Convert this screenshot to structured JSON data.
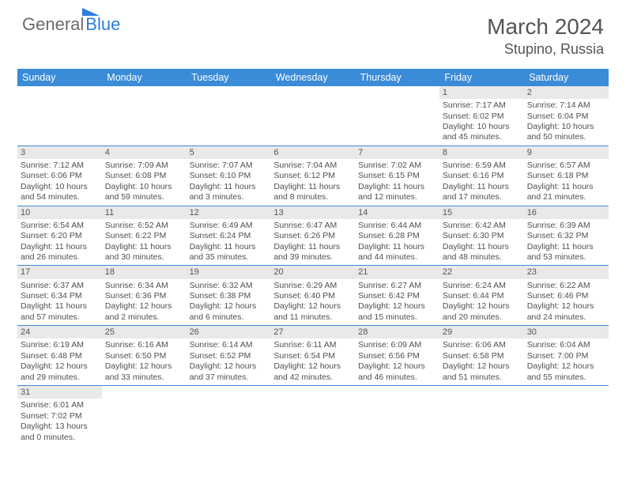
{
  "logo": {
    "text1": "General",
    "text2": "Blue"
  },
  "title": {
    "month": "March 2024",
    "location": "Stupino, Russia"
  },
  "headers": [
    "Sunday",
    "Monday",
    "Tuesday",
    "Wednesday",
    "Thursday",
    "Friday",
    "Saturday"
  ],
  "colors": {
    "header_bg": "#3a8bd8",
    "header_fg": "#ffffff",
    "daynum_bg": "#e9e9e9",
    "border": "#3a8bd8",
    "text": "#505050",
    "logo_gray": "#6b6b6b",
    "logo_blue": "#2a7de1"
  },
  "grid": [
    [
      null,
      null,
      null,
      null,
      null,
      {
        "n": "1",
        "sr": "7:17 AM",
        "ss": "6:02 PM",
        "dl": "10 hours and 45 minutes."
      },
      {
        "n": "2",
        "sr": "7:14 AM",
        "ss": "6:04 PM",
        "dl": "10 hours and 50 minutes."
      }
    ],
    [
      {
        "n": "3",
        "sr": "7:12 AM",
        "ss": "6:06 PM",
        "dl": "10 hours and 54 minutes."
      },
      {
        "n": "4",
        "sr": "7:09 AM",
        "ss": "6:08 PM",
        "dl": "10 hours and 59 minutes."
      },
      {
        "n": "5",
        "sr": "7:07 AM",
        "ss": "6:10 PM",
        "dl": "11 hours and 3 minutes."
      },
      {
        "n": "6",
        "sr": "7:04 AM",
        "ss": "6:12 PM",
        "dl": "11 hours and 8 minutes."
      },
      {
        "n": "7",
        "sr": "7:02 AM",
        "ss": "6:15 PM",
        "dl": "11 hours and 12 minutes."
      },
      {
        "n": "8",
        "sr": "6:59 AM",
        "ss": "6:16 PM",
        "dl": "11 hours and 17 minutes."
      },
      {
        "n": "9",
        "sr": "6:57 AM",
        "ss": "6:18 PM",
        "dl": "11 hours and 21 minutes."
      }
    ],
    [
      {
        "n": "10",
        "sr": "6:54 AM",
        "ss": "6:20 PM",
        "dl": "11 hours and 26 minutes."
      },
      {
        "n": "11",
        "sr": "6:52 AM",
        "ss": "6:22 PM",
        "dl": "11 hours and 30 minutes."
      },
      {
        "n": "12",
        "sr": "6:49 AM",
        "ss": "6:24 PM",
        "dl": "11 hours and 35 minutes."
      },
      {
        "n": "13",
        "sr": "6:47 AM",
        "ss": "6:26 PM",
        "dl": "11 hours and 39 minutes."
      },
      {
        "n": "14",
        "sr": "6:44 AM",
        "ss": "6:28 PM",
        "dl": "11 hours and 44 minutes."
      },
      {
        "n": "15",
        "sr": "6:42 AM",
        "ss": "6:30 PM",
        "dl": "11 hours and 48 minutes."
      },
      {
        "n": "16",
        "sr": "6:39 AM",
        "ss": "6:32 PM",
        "dl": "11 hours and 53 minutes."
      }
    ],
    [
      {
        "n": "17",
        "sr": "6:37 AM",
        "ss": "6:34 PM",
        "dl": "11 hours and 57 minutes."
      },
      {
        "n": "18",
        "sr": "6:34 AM",
        "ss": "6:36 PM",
        "dl": "12 hours and 2 minutes."
      },
      {
        "n": "19",
        "sr": "6:32 AM",
        "ss": "6:38 PM",
        "dl": "12 hours and 6 minutes."
      },
      {
        "n": "20",
        "sr": "6:29 AM",
        "ss": "6:40 PM",
        "dl": "12 hours and 11 minutes."
      },
      {
        "n": "21",
        "sr": "6:27 AM",
        "ss": "6:42 PM",
        "dl": "12 hours and 15 minutes."
      },
      {
        "n": "22",
        "sr": "6:24 AM",
        "ss": "6:44 PM",
        "dl": "12 hours and 20 minutes."
      },
      {
        "n": "23",
        "sr": "6:22 AM",
        "ss": "6:46 PM",
        "dl": "12 hours and 24 minutes."
      }
    ],
    [
      {
        "n": "24",
        "sr": "6:19 AM",
        "ss": "6:48 PM",
        "dl": "12 hours and 29 minutes."
      },
      {
        "n": "25",
        "sr": "6:16 AM",
        "ss": "6:50 PM",
        "dl": "12 hours and 33 minutes."
      },
      {
        "n": "26",
        "sr": "6:14 AM",
        "ss": "6:52 PM",
        "dl": "12 hours and 37 minutes."
      },
      {
        "n": "27",
        "sr": "6:11 AM",
        "ss": "6:54 PM",
        "dl": "12 hours and 42 minutes."
      },
      {
        "n": "28",
        "sr": "6:09 AM",
        "ss": "6:56 PM",
        "dl": "12 hours and 46 minutes."
      },
      {
        "n": "29",
        "sr": "6:06 AM",
        "ss": "6:58 PM",
        "dl": "12 hours and 51 minutes."
      },
      {
        "n": "30",
        "sr": "6:04 AM",
        "ss": "7:00 PM",
        "dl": "12 hours and 55 minutes."
      }
    ],
    [
      {
        "n": "31",
        "sr": "6:01 AM",
        "ss": "7:02 PM",
        "dl": "13 hours and 0 minutes."
      },
      null,
      null,
      null,
      null,
      null,
      null
    ]
  ],
  "labels": {
    "sunrise": "Sunrise: ",
    "sunset": "Sunset: ",
    "daylight": "Daylight: "
  }
}
